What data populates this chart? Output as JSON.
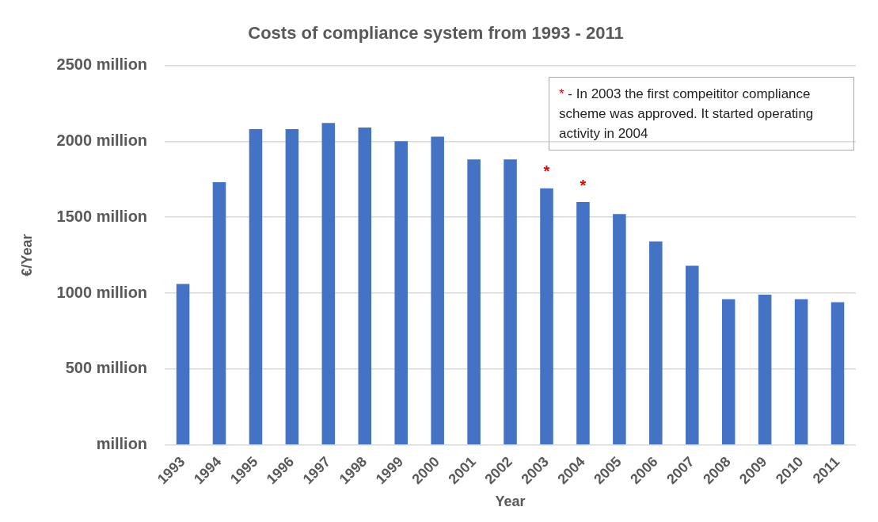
{
  "chart_data": {
    "type": "bar",
    "title": "Costs of compliance system from 1993 - 2011",
    "xlabel": "Year",
    "ylabel": "€/Year",
    "categories": [
      "1993",
      "1994",
      "1995",
      "1996",
      "1997",
      "1998",
      "1999",
      "2000",
      "2001",
      "2002",
      "2003",
      "2004",
      "2005",
      "2006",
      "2007",
      "2008",
      "2009",
      "2010",
      "2011"
    ],
    "values": [
      1060,
      1730,
      2080,
      2080,
      2120,
      2090,
      2000,
      2030,
      1880,
      1880,
      1690,
      1600,
      1520,
      1340,
      1180,
      960,
      990,
      960,
      940
    ],
    "color": "#4472c4",
    "ylim": [
      0,
      2500
    ],
    "yticks": [
      {
        "value": 0,
        "label": "million"
      },
      {
        "value": 500,
        "label": "500 million"
      },
      {
        "value": 1000,
        "label": "1000 million"
      },
      {
        "value": 1500,
        "label": "1500 million"
      },
      {
        "value": 2000,
        "label": "2000 million"
      },
      {
        "value": 2500,
        "label": "2500 million"
      }
    ],
    "grid": "y",
    "legend": false,
    "annotations": [
      "* - In 2003 the first compeititor compliance scheme was approved. It started operating activity in 2004",
      {
        "text": "*",
        "x": "2003",
        "y": 1690
      },
      {
        "text": "*",
        "x": "2004",
        "y": 1600
      }
    ]
  }
}
